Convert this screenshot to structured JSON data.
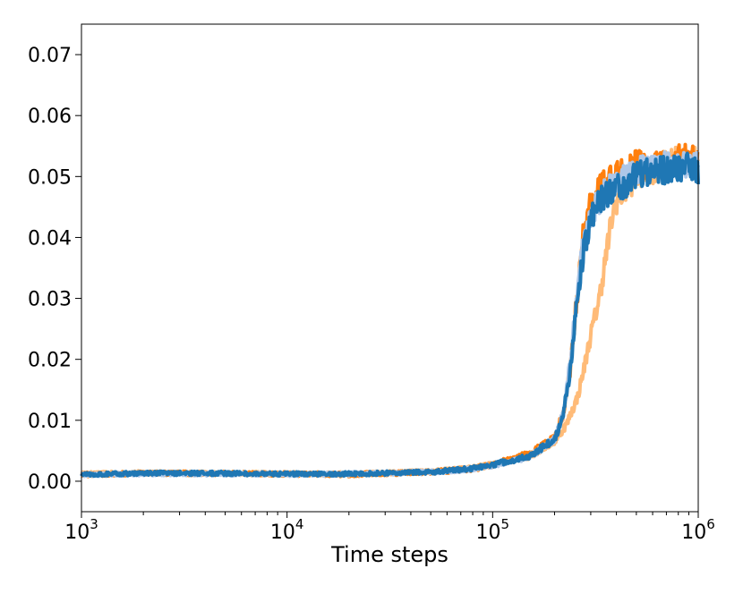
{
  "chart_data": {
    "type": "line",
    "title": "",
    "xlabel": "Time steps",
    "ylabel": "",
    "x_scale": "log",
    "xlim": [
      1000,
      1000000
    ],
    "ylim": [
      -0.005,
      0.075
    ],
    "grid": false,
    "x_ticks": [
      {
        "value": 1000,
        "base": "10",
        "exp": "3"
      },
      {
        "value": 10000,
        "base": "10",
        "exp": "4"
      },
      {
        "value": 100000,
        "base": "10",
        "exp": "5"
      },
      {
        "value": 1000000,
        "base": "10",
        "exp": "6"
      }
    ],
    "y_ticks": [
      {
        "value": 0.0,
        "label": "0.00"
      },
      {
        "value": 0.01,
        "label": "0.01"
      },
      {
        "value": 0.02,
        "label": "0.02"
      },
      {
        "value": 0.03,
        "label": "0.03"
      },
      {
        "value": 0.04,
        "label": "0.04"
      },
      {
        "value": 0.05,
        "label": "0.05"
      },
      {
        "value": 0.06,
        "label": "0.06"
      },
      {
        "value": 0.07,
        "label": "0.07"
      }
    ],
    "series": [
      {
        "color": "#ffbb78",
        "x": [
          1000,
          2000,
          5000,
          10000,
          20000,
          50000,
          80000,
          100000,
          150000,
          200000,
          230000,
          260000,
          280000,
          300000,
          330000,
          360000,
          380000,
          400000,
          450000,
          500000,
          600000,
          700000,
          800000,
          900000,
          1000000
        ],
        "y": [
          0.0012,
          0.0014,
          0.0013,
          0.0012,
          0.0012,
          0.0016,
          0.0022,
          0.0028,
          0.004,
          0.0065,
          0.0095,
          0.014,
          0.019,
          0.024,
          0.03,
          0.038,
          0.043,
          0.046,
          0.048,
          0.05,
          0.051,
          0.052,
          0.053,
          0.052,
          0.053
        ],
        "noise": 0.0022
      },
      {
        "color": "#ff7f0e",
        "x": [
          1000,
          2000,
          5000,
          10000,
          20000,
          50000,
          80000,
          100000,
          150000,
          200000,
          220000,
          240000,
          260000,
          280000,
          300000,
          330000,
          360000,
          400000,
          450000,
          500000,
          600000,
          700000,
          800000,
          900000,
          1000000
        ],
        "y": [
          0.0011,
          0.0013,
          0.0013,
          0.0012,
          0.0011,
          0.0015,
          0.002,
          0.0027,
          0.0045,
          0.007,
          0.011,
          0.019,
          0.032,
          0.042,
          0.046,
          0.048,
          0.049,
          0.05,
          0.051,
          0.052,
          0.052,
          0.052,
          0.053,
          0.053,
          0.052
        ],
        "noise": 0.0024
      },
      {
        "color": "#aec7e8",
        "x": [
          1000,
          2000,
          5000,
          10000,
          20000,
          50000,
          80000,
          100000,
          150000,
          200000,
          220000,
          240000,
          260000,
          280000,
          300000,
          330000,
          360000,
          400000,
          450000,
          500000,
          600000,
          700000,
          800000,
          900000,
          1000000
        ],
        "y": [
          0.0011,
          0.0012,
          0.0012,
          0.0011,
          0.0012,
          0.0015,
          0.002,
          0.0026,
          0.004,
          0.0068,
          0.011,
          0.02,
          0.033,
          0.041,
          0.044,
          0.046,
          0.048,
          0.049,
          0.05,
          0.051,
          0.052,
          0.052,
          0.052,
          0.052,
          0.052
        ],
        "noise": 0.0022
      },
      {
        "color": "#1f77b4",
        "x": [
          1000,
          2000,
          5000,
          10000,
          20000,
          50000,
          80000,
          100000,
          150000,
          200000,
          220000,
          240000,
          260000,
          280000,
          300000,
          330000,
          360000,
          400000,
          450000,
          500000,
          600000,
          700000,
          800000,
          900000,
          1000000
        ],
        "y": [
          0.0011,
          0.0013,
          0.0013,
          0.0012,
          0.0012,
          0.0015,
          0.0021,
          0.0027,
          0.0041,
          0.0068,
          0.0105,
          0.019,
          0.031,
          0.039,
          0.043,
          0.046,
          0.047,
          0.048,
          0.049,
          0.05,
          0.051,
          0.051,
          0.051,
          0.052,
          0.051
        ],
        "noise": 0.0023
      }
    ]
  }
}
